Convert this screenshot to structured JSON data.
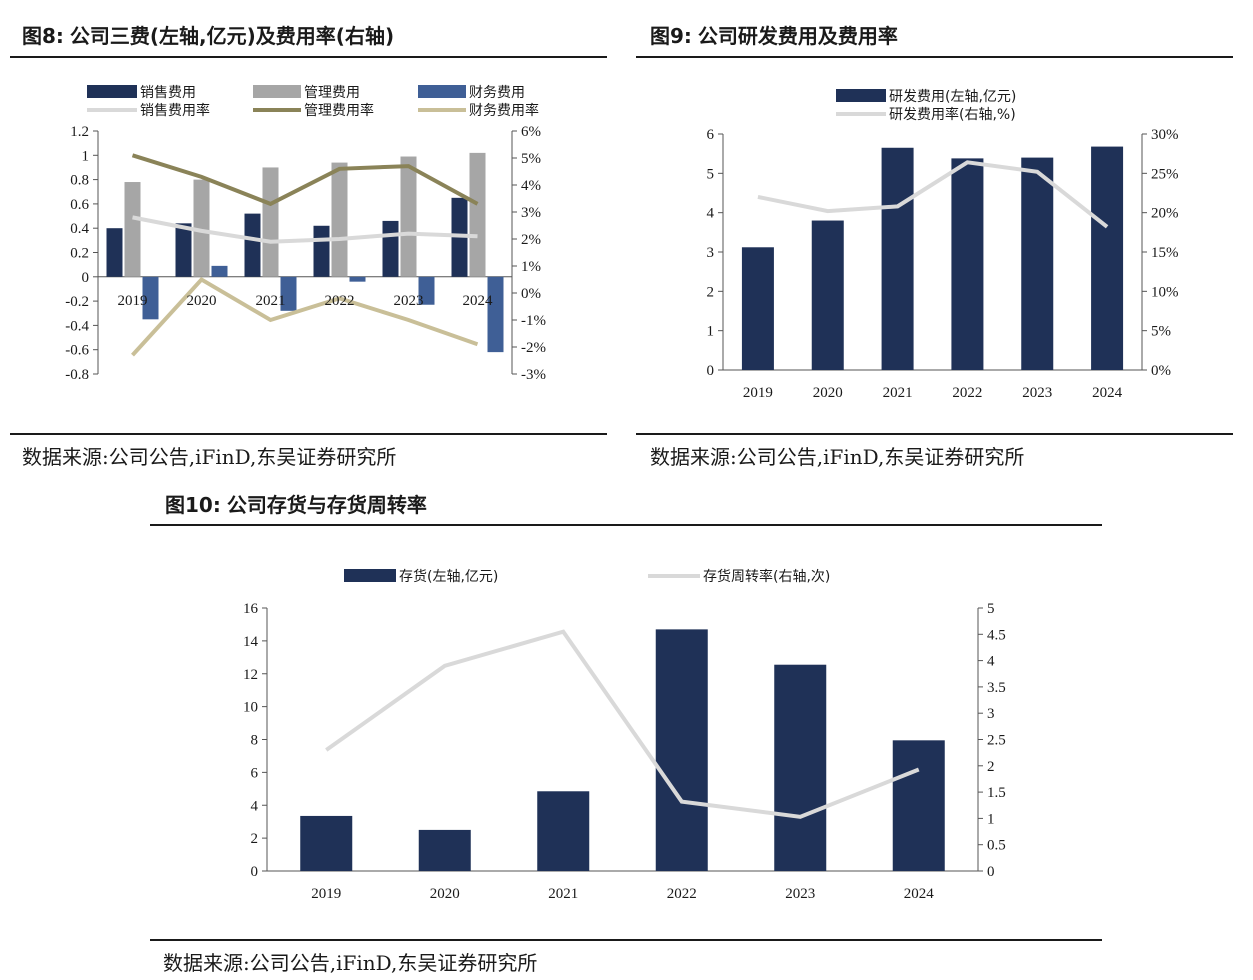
{
  "fig8": {
    "title_no": "图8:",
    "title_text": "公司三费(左轴,亿元)及费用率(右轴)",
    "source": "数据来源:公司公告,iFinD,东吴证券研究所"
  },
  "fig9": {
    "title_no": "图9:",
    "title_text": "公司研发费用及费用率",
    "source": "数据来源:公司公告,iFinD,东吴证券研究所"
  },
  "fig10": {
    "title_no": "图10:",
    "title_text": "公司存货与存货周转率",
    "source": "数据来源:公司公告,iFinD,东吴证券研究所"
  },
  "colors": {
    "navy": "#1f3157",
    "grey": "#a6a6a6",
    "blue": "#3f5f96",
    "light_grey": "#d9d9d9",
    "olive": "#8a8358",
    "tan": "#c9bf98"
  },
  "chart_data": [
    {
      "id": "fig8",
      "type": "bar",
      "categories": [
        "2019",
        "2020",
        "2021",
        "2022",
        "2023",
        "2024"
      ],
      "series": [
        {
          "name": "销售费用",
          "type": "bar",
          "axis": "left",
          "color": "#1f3157",
          "values": [
            0.4,
            0.44,
            0.52,
            0.42,
            0.46,
            0.65
          ]
        },
        {
          "name": "管理费用",
          "type": "bar",
          "axis": "left",
          "color": "#a6a6a6",
          "values": [
            0.78,
            0.8,
            0.9,
            0.94,
            0.99,
            1.02
          ]
        },
        {
          "name": "财务费用",
          "type": "bar",
          "axis": "left",
          "color": "#3f5f96",
          "values": [
            -0.35,
            0.09,
            -0.28,
            -0.04,
            -0.23,
            -0.62
          ]
        },
        {
          "name": "销售费用率",
          "type": "line",
          "axis": "right",
          "color": "#d9d9d9",
          "values": [
            2.8,
            2.3,
            1.9,
            2.0,
            2.2,
            2.1
          ]
        },
        {
          "name": "管理费用率",
          "type": "line",
          "axis": "right",
          "color": "#8a8358",
          "values": [
            5.1,
            4.3,
            3.3,
            4.6,
            4.7,
            3.3
          ]
        },
        {
          "name": "财务费用率",
          "type": "line",
          "axis": "right",
          "color": "#c9bf98",
          "values": [
            -2.3,
            0.5,
            -1.0,
            -0.2,
            -1.0,
            -1.9
          ]
        }
      ],
      "y_left": {
        "range": [
          -0.8,
          1.2
        ],
        "ticks": [
          "1.2",
          "1",
          "0.8",
          "0.6",
          "0.4",
          "0.2",
          "0",
          "-0.2",
          "-0.4",
          "-0.6",
          "-0.8"
        ]
      },
      "y_right": {
        "range": [
          -3,
          6
        ],
        "ticks": [
          "6%",
          "5%",
          "4%",
          "3%",
          "2%",
          "1%",
          "0%",
          "-1%",
          "-2%",
          "-3%"
        ]
      },
      "legend": "top",
      "grid": false
    },
    {
      "id": "fig9",
      "type": "bar",
      "categories": [
        "2019",
        "2020",
        "2021",
        "2022",
        "2023",
        "2024"
      ],
      "series": [
        {
          "name": "研发费用(左轴,亿元)",
          "type": "bar",
          "axis": "left",
          "color": "#1f3157",
          "values": [
            3.12,
            3.8,
            5.65,
            5.38,
            5.4,
            5.68
          ]
        },
        {
          "name": "研发费用率(右轴,%)",
          "type": "line",
          "axis": "right",
          "color": "#d9d9d9",
          "values": [
            22.0,
            20.2,
            20.8,
            26.4,
            25.2,
            18.2
          ]
        }
      ],
      "y_left": {
        "range": [
          0,
          6
        ],
        "ticks": [
          "6",
          "5",
          "4",
          "3",
          "2",
          "1",
          "0"
        ]
      },
      "y_right": {
        "range": [
          0,
          30
        ],
        "ticks": [
          "30%",
          "25%",
          "20%",
          "15%",
          "10%",
          "5%",
          "0%"
        ]
      },
      "legend": "top",
      "grid": false
    },
    {
      "id": "fig10",
      "type": "bar",
      "categories": [
        "2019",
        "2020",
        "2021",
        "2022",
        "2023",
        "2024"
      ],
      "series": [
        {
          "name": "存货(左轴,亿元)",
          "type": "bar",
          "axis": "left",
          "color": "#1f3157",
          "values": [
            3.35,
            2.5,
            4.85,
            14.7,
            12.55,
            7.95
          ]
        },
        {
          "name": "存货周转率(右轴,次)",
          "type": "line",
          "axis": "right",
          "color": "#d9d9d9",
          "values": [
            2.3,
            3.9,
            4.55,
            1.32,
            1.03,
            1.93
          ]
        }
      ],
      "y_left": {
        "range": [
          0,
          16
        ],
        "ticks": [
          "16",
          "14",
          "12",
          "10",
          "8",
          "6",
          "4",
          "2",
          "0"
        ]
      },
      "y_right": {
        "range": [
          0,
          5
        ],
        "ticks": [
          "5",
          "4.5",
          "4",
          "3.5",
          "3",
          "2.5",
          "2",
          "1.5",
          "1",
          "0.5",
          "0"
        ]
      },
      "legend": "top",
      "grid": false
    }
  ]
}
